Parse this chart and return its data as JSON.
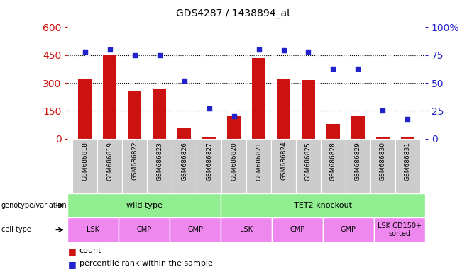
{
  "title": "GDS4287 / 1438894_at",
  "samples": [
    "GSM686818",
    "GSM686819",
    "GSM686822",
    "GSM686823",
    "GSM686826",
    "GSM686827",
    "GSM686820",
    "GSM686821",
    "GSM686824",
    "GSM686825",
    "GSM686828",
    "GSM686829",
    "GSM686830",
    "GSM686831"
  ],
  "counts": [
    325,
    450,
    255,
    270,
    60,
    10,
    120,
    435,
    320,
    315,
    80,
    120,
    10,
    10
  ],
  "percentiles": [
    78,
    80,
    75,
    75,
    52,
    27,
    20,
    80,
    79,
    78,
    63,
    63,
    25,
    18
  ],
  "ylim_left": [
    0,
    600
  ],
  "ylim_right": [
    0,
    100
  ],
  "yticks_left": [
    0,
    150,
    300,
    450,
    600
  ],
  "yticks_right": [
    0,
    25,
    50,
    75,
    100
  ],
  "bar_color": "#cc1111",
  "dot_color": "#2222cc",
  "left_axis_color": "#cc1111",
  "right_axis_color": "#2222cc",
  "genotype_groups": [
    {
      "label": "wild type",
      "start": 0,
      "end": 6
    },
    {
      "label": "TET2 knockout",
      "start": 6,
      "end": 14
    }
  ],
  "cell_type_groups": [
    {
      "label": "LSK",
      "start": 0,
      "end": 2
    },
    {
      "label": "CMP",
      "start": 2,
      "end": 4
    },
    {
      "label": "GMP",
      "start": 4,
      "end": 6
    },
    {
      "label": "LSK",
      "start": 6,
      "end": 8
    },
    {
      "label": "CMP",
      "start": 8,
      "end": 10
    },
    {
      "label": "GMP",
      "start": 10,
      "end": 12
    },
    {
      "label": "LSK CD150+\nsorted",
      "start": 12,
      "end": 14
    }
  ],
  "genotype_label": "genotype/variation",
  "cell_type_label": "cell type",
  "legend_count": "count",
  "legend_percentile": "percentile rank within the sample",
  "genotype_row_color": "#90ee90",
  "cell_type_row_color": "#ee88ee",
  "xlabel_bg_color": "#cccccc",
  "hgrid_color": "black",
  "hgrid_values": [
    150,
    300,
    450
  ]
}
